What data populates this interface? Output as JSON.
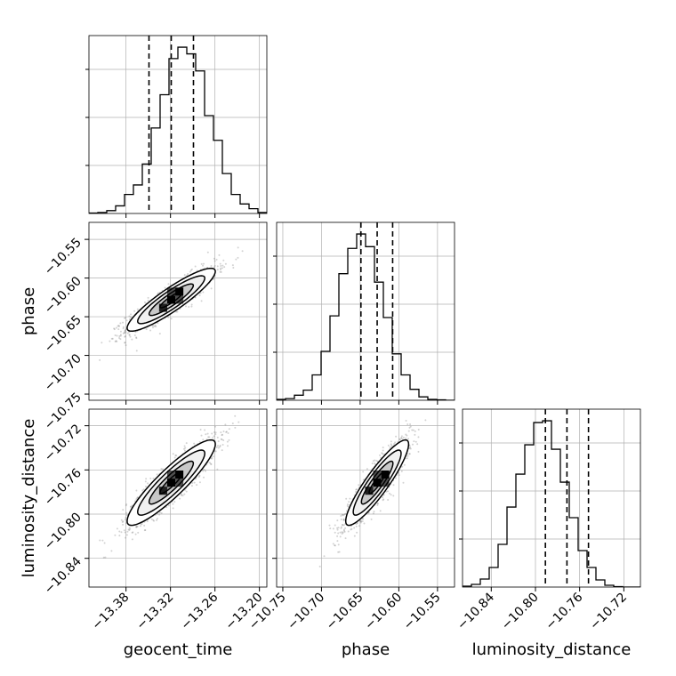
{
  "chart_data": {
    "type": "corner",
    "parameters": [
      "geocent_time",
      "phase",
      "luminosity_distance"
    ],
    "axis_labels": {
      "x": [
        "geocent_time",
        "phase",
        "luminosity_distance"
      ],
      "y": [
        "",
        "phase",
        "luminosity_distance"
      ]
    },
    "ranges": {
      "geocent_time": [
        -13.43,
        -13.19
      ],
      "phase": [
        -10.758,
        -10.528
      ],
      "luminosity_distance": [
        -10.866,
        -10.705
      ]
    },
    "ticks": {
      "geocent_time": {
        "values": [
          -13.38,
          -13.32,
          -13.26,
          -13.2
        ],
        "labels": [
          "−13.38",
          "−13.32",
          "−13.26",
          "−13.20"
        ]
      },
      "phase": {
        "values": [
          -10.75,
          -10.7,
          -10.65,
          -10.6,
          -10.55
        ],
        "labels": [
          "−10.75",
          "−10.70",
          "−10.65",
          "−10.60",
          "−10.55"
        ]
      },
      "luminosity_distance": {
        "values": [
          -10.84,
          -10.8,
          -10.76,
          -10.72
        ],
        "labels": [
          "−10.84",
          "−10.80",
          "−10.76",
          "−10.72"
        ]
      }
    },
    "quantiles": {
      "geocent_time": [
        -13.349,
        -13.319,
        -13.289
      ],
      "phase": [
        -10.649,
        -10.628,
        -10.608
      ],
      "luminosity_distance": [
        -10.791,
        -10.7715,
        -10.752
      ]
    },
    "histograms": {
      "geocent_time": {
        "bin_start": -13.43,
        "bin_width": 0.012,
        "counts": [
          0.5,
          1,
          3,
          8,
          20,
          30,
          52,
          90,
          125,
          163,
          175,
          168,
          150,
          103,
          77,
          42,
          20,
          10,
          5,
          1
        ]
      },
      "phase": {
        "bin_start": -10.758,
        "bin_width": 0.0115,
        "counts": [
          1,
          2,
          6,
          12,
          30,
          58,
          100,
          150,
          180,
          197,
          182,
          140,
          98,
          55,
          30,
          13,
          4,
          1,
          0.5,
          0
        ]
      },
      "luminosity_distance": {
        "bin_start": -10.866,
        "bin_width": 0.00805,
        "counts": [
          1,
          3,
          9,
          22,
          48,
          90,
          127,
          160,
          185,
          187,
          155,
          118,
          78,
          41,
          22,
          8,
          2,
          0.5,
          0,
          0
        ]
      }
    },
    "pair_correlations": {
      "geocent_time|phase": 0.9,
      "geocent_time|luminosity_distance": 0.9,
      "phase|luminosity_distance": 0.9
    },
    "contour_levels": [
      0.12,
      0.39,
      0.68,
      0.86
    ],
    "grid": true,
    "colors": {
      "line": "#000000",
      "grid": "#b0b0b0",
      "points": "#808080"
    }
  }
}
